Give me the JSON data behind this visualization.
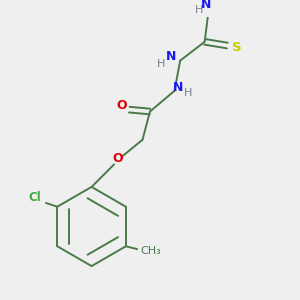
{
  "background_color": "#efefef",
  "bond_color": "#4a7a4a",
  "atom_colors": {
    "N": "#1a1aee",
    "O": "#dd0000",
    "S": "#cccc00",
    "Cl": "#44aa44",
    "C": "#4a7a4a",
    "H": "#708090"
  },
  "figsize": [
    3.0,
    3.0
  ],
  "dpi": 100,
  "lw": 1.4
}
